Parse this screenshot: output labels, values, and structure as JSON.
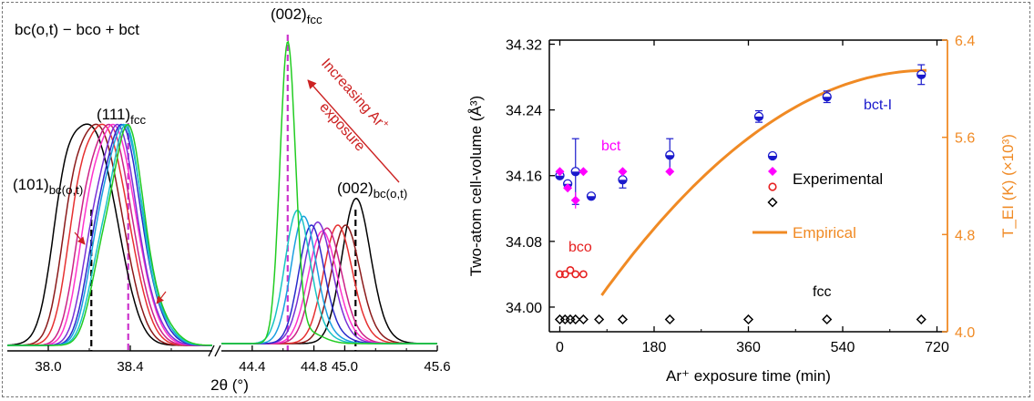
{
  "chart_data": [
    {
      "type": "line",
      "panel": "left",
      "title": "bc(o,t) − bco + bct",
      "xlabel": "2θ (°)",
      "xlim_segment_1": [
        37.8,
        38.8
      ],
      "xlim_segment_2": [
        44.2,
        45.6
      ],
      "xticks_segment_1": [
        "38.0",
        "38.4"
      ],
      "xticks_segment_2": [
        "44.4",
        "44.8",
        "45.0",
        "45.6"
      ],
      "reference_lines": [
        {
          "label_main": "(111)",
          "label_sub": "fcc",
          "x": 38.39,
          "color": "#cc33cc"
        },
        {
          "label_main": "(002)",
          "label_sub": "fcc",
          "x": 44.63,
          "color": "#cc33cc"
        },
        {
          "label_main": "(101)",
          "label_sub": "bc(o,t)",
          "x": 38.21,
          "color": "#000000"
        },
        {
          "label_main": "(002)",
          "label_sub": "bc(o,t)",
          "x": 45.07,
          "color": "#000000"
        }
      ],
      "annotation": {
        "line1": "Increasing Ar",
        "sup": "+",
        "line2": "exposure"
      },
      "series_colors": [
        "#000000",
        "#8b1a1a",
        "#e63030",
        "#cc2288",
        "#ff33cc",
        "#7a2fd6",
        "#2a2acc",
        "#1a9fe0",
        "#19c4c4",
        "#22cc22"
      ],
      "series": [
        {
          "peak1": 38.2,
          "w1": 0.11,
          "peak2": 45.07,
          "w2": 0.09,
          "h2": 0.47
        },
        {
          "peak1": 38.24,
          "w1": 0.1,
          "peak2": 45.0,
          "w2": 0.09,
          "h2": 0.38
        },
        {
          "peak1": 38.27,
          "w1": 0.1,
          "peak2": 44.95,
          "w2": 0.09,
          "h2": 0.38
        },
        {
          "peak1": 38.3,
          "w1": 0.09,
          "peak2": 44.88,
          "w2": 0.09,
          "h2": 0.37
        },
        {
          "peak1": 38.32,
          "w1": 0.09,
          "peak2": 44.85,
          "w2": 0.09,
          "h2": 0.36
        },
        {
          "peak1": 38.34,
          "w1": 0.08,
          "peak2": 44.82,
          "w2": 0.09,
          "h2": 0.39
        },
        {
          "peak1": 38.36,
          "w1": 0.08,
          "peak2": 44.78,
          "w2": 0.08,
          "h2": 0.38
        },
        {
          "peak1": 38.37,
          "w1": 0.08,
          "peak2": 44.73,
          "w2": 0.08,
          "h2": 0.41
        },
        {
          "peak1": 38.38,
          "w1": 0.07,
          "peak2": 44.69,
          "w2": 0.08,
          "h2": 0.43
        },
        {
          "peak1": 38.39,
          "w1": 0.07,
          "peak2": 44.63,
          "w2": 0.05,
          "h2": 1.0
        }
      ]
    },
    {
      "type": "scatter",
      "panel": "right",
      "xlabel": "Ar⁺ exposure time (min)",
      "ylabel": "Two-atom cell-volume (Å³)",
      "y2label": "T_EI (K) (×10³)",
      "xlim": [
        -20,
        740
      ],
      "ylim": [
        33.97,
        34.325
      ],
      "y2lim": [
        4.0,
        6.4
      ],
      "xticks": [
        0,
        180,
        360,
        540,
        720
      ],
      "yticks": [
        34.0,
        34.08,
        34.16,
        34.24,
        34.32
      ],
      "y2ticks": [
        4.0,
        4.8,
        5.6,
        6.4
      ],
      "series": [
        {
          "name": "bct-I",
          "color": "#1a1acc",
          "marker": "half-filled-circle",
          "x": [
            0,
            15,
            30,
            60,
            120,
            210,
            380,
            510,
            690
          ],
          "y": [
            34.16,
            34.15,
            34.165,
            34.135,
            34.155,
            34.185,
            34.232,
            34.256,
            34.283
          ],
          "err": [
            0.0,
            0.0,
            0.04,
            0.0,
            0.01,
            0.02,
            0.007,
            0.007,
            0.012
          ]
        },
        {
          "name": "bct",
          "color": "#ff00ff",
          "marker": "diamond",
          "x": [
            0,
            15,
            30,
            45,
            120,
            210
          ],
          "y": [
            34.165,
            34.145,
            34.13,
            34.165,
            34.165,
            34.165
          ],
          "err": [
            0.0,
            0.0,
            0.01,
            0.0,
            0.0,
            0.0
          ]
        },
        {
          "name": "bco",
          "color": "#e62020",
          "marker": "open-circle",
          "x": [
            0,
            10,
            20,
            30,
            45
          ],
          "y": [
            34.04,
            34.04,
            34.045,
            34.04,
            34.04
          ]
        },
        {
          "name": "fcc",
          "color": "#000000",
          "marker": "open-diamond",
          "x": [
            0,
            10,
            20,
            30,
            45,
            75,
            120,
            210,
            360,
            510,
            690
          ],
          "y": [
            33.985,
            33.985,
            33.985,
            33.985,
            33.985,
            33.985,
            33.985,
            33.985,
            33.985,
            33.985,
            33.985
          ]
        },
        {
          "name": "Empirical",
          "color": "#f08a24",
          "marker": "line",
          "axis": "right",
          "x": [
            80,
            700
          ],
          "y_at_end": [
            4.3,
            6.15
          ]
        }
      ],
      "legend": [
        {
          "label": "Experimental"
        },
        {
          "label": "Empirical"
        }
      ],
      "phase_labels": [
        "bct-I",
        "bct",
        "bco",
        "fcc"
      ]
    }
  ]
}
